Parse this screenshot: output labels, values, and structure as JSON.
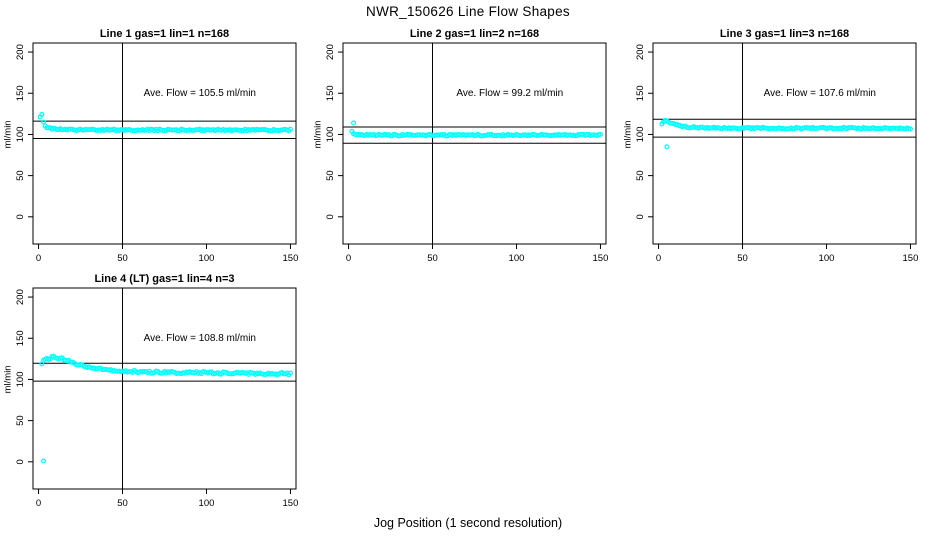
{
  "page": {
    "title": "NWR_150626  Line Flow Shapes",
    "x_axis_global_label": "Jog Position (1 second resolution)",
    "background_color": "#ffffff",
    "point_color": "#00ffff",
    "axis_color": "#000000"
  },
  "chart_data": [
    {
      "type": "scatter",
      "title": "Line 1 gas=1 lin=1 n=168",
      "line": 1,
      "gas": 1,
      "lin": 1,
      "n": 168,
      "ave_flow_ml_min": 105.5,
      "annotation": "Ave. Flow =  105.5  ml/min",
      "ylabel": "ml/min",
      "x_ticks": [
        0,
        50,
        100,
        150
      ],
      "y_ticks": [
        0,
        50,
        100,
        150,
        200
      ],
      "xlim": [
        0,
        150
      ],
      "ylim": [
        0,
        200
      ],
      "vline_x": 50,
      "hlines": [
        116.1,
        95.0
      ],
      "x_range": [
        1,
        150
      ],
      "x_step": 1,
      "noise": 1.0,
      "series": [
        {
          "name": "flow",
          "profile": [
            [
              1,
              122
            ],
            [
              2,
              124
            ],
            [
              3,
              116
            ],
            [
              4,
              111
            ],
            [
              5,
              109
            ],
            [
              7,
              107.5
            ],
            [
              10,
              106.3
            ],
            [
              15,
              105.7
            ],
            [
              25,
              105.5
            ],
            [
              50,
              105.4
            ],
            [
              100,
              105.5
            ],
            [
              150,
              105.5
            ]
          ]
        }
      ],
      "outliers": []
    },
    {
      "type": "scatter",
      "title": "Line 2 gas=1 lin=2 n=168",
      "line": 2,
      "gas": 1,
      "lin": 2,
      "n": 168,
      "ave_flow_ml_min": 99.2,
      "annotation": "Ave. Flow =  99.2  ml/min",
      "ylabel": "ml/min",
      "x_ticks": [
        0,
        50,
        100,
        150
      ],
      "y_ticks": [
        0,
        50,
        100,
        150,
        200
      ],
      "xlim": [
        0,
        150
      ],
      "ylim": [
        0,
        200
      ],
      "vline_x": 50,
      "hlines": [
        109.1,
        89.3
      ],
      "x_range": [
        2,
        150
      ],
      "x_step": 1,
      "noise": 1.0,
      "series": [
        {
          "name": "flow",
          "profile": [
            [
              2,
              104
            ],
            [
              3,
              101
            ],
            [
              4,
              100
            ],
            [
              6,
              99.5
            ],
            [
              10,
              99.2
            ],
            [
              50,
              99.1
            ],
            [
              100,
              99.2
            ],
            [
              150,
              99.2
            ]
          ]
        }
      ],
      "outliers": [
        [
          3,
          114
        ]
      ]
    },
    {
      "type": "scatter",
      "title": "Line 3 gas=1 lin=3 n=168",
      "line": 3,
      "gas": 1,
      "lin": 3,
      "n": 168,
      "ave_flow_ml_min": 107.6,
      "annotation": "Ave. Flow =  107.6  ml/min",
      "ylabel": "ml/min",
      "x_ticks": [
        0,
        50,
        100,
        150
      ],
      "y_ticks": [
        0,
        50,
        100,
        150,
        200
      ],
      "xlim": [
        0,
        150
      ],
      "ylim": [
        0,
        200
      ],
      "vline_x": 50,
      "hlines": [
        118.4,
        96.8
      ],
      "x_range": [
        2,
        150
      ],
      "x_step": 1,
      "noise": 1.0,
      "series": [
        {
          "name": "flow",
          "profile": [
            [
              2,
              112
            ],
            [
              3,
              115.5
            ],
            [
              4,
              117
            ],
            [
              6,
              115.5
            ],
            [
              8,
              113.5
            ],
            [
              12,
              111
            ],
            [
              18,
              109
            ],
            [
              25,
              108
            ],
            [
              40,
              107.6
            ],
            [
              100,
              107.6
            ],
            [
              150,
              107.6
            ]
          ]
        }
      ],
      "outliers": [
        [
          5,
          85
        ]
      ]
    },
    {
      "type": "scatter",
      "title": "Line 4 (LT) gas=1 lin=4 n=3",
      "line": 4,
      "gas": 1,
      "lin": 4,
      "n": 3,
      "ave_flow_ml_min": 108.8,
      "annotation": "Ave. Flow =  108.8  ml/min",
      "ylabel": "ml/min",
      "x_ticks": [
        0,
        50,
        100,
        150
      ],
      "y_ticks": [
        0,
        50,
        100,
        150,
        200
      ],
      "xlim": [
        0,
        150
      ],
      "ylim": [
        0,
        200
      ],
      "vline_x": 50,
      "hlines": [
        119.7,
        97.9
      ],
      "x_range": [
        2,
        150
      ],
      "x_step": 1,
      "noise": 1.4,
      "series": [
        {
          "name": "flow",
          "profile": [
            [
              2,
              118
            ],
            [
              3,
              122
            ],
            [
              5,
              125
            ],
            [
              9,
              127
            ],
            [
              14,
              125.5
            ],
            [
              20,
              121
            ],
            [
              25,
              117.5
            ],
            [
              30,
              114.5
            ],
            [
              40,
              111.5
            ],
            [
              50,
              110
            ],
            [
              65,
              109
            ],
            [
              80,
              108.3
            ],
            [
              100,
              108
            ],
            [
              125,
              107.3
            ],
            [
              150,
              106.8
            ]
          ]
        }
      ],
      "outliers": [
        [
          3,
          1
        ]
      ]
    }
  ]
}
